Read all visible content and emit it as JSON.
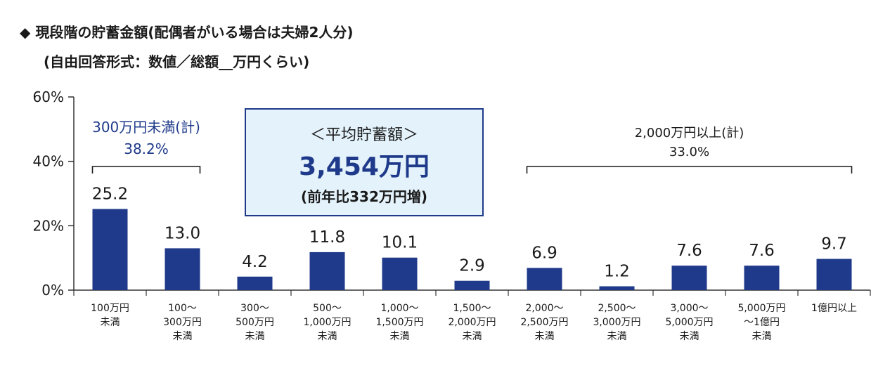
{
  "title": {
    "line1": "◆ 現段階の貯蓄金額(配偶者がいる場合は夫婦2人分)",
    "line2": "(自由回答形式：数値／総額__万円くらい)"
  },
  "callout": {
    "label": "＜平均貯蓄額＞",
    "value": "3,454万円",
    "sub": "(前年比332万円増)"
  },
  "groups": {
    "left_label": "300万円未満(計)",
    "left_value": "38.2%",
    "right_label": "2,000万円以上(計)",
    "right_value": "33.0%"
  },
  "colors": {
    "bar": "#1f3a8a",
    "accent_text": "#1f3a8a",
    "box_fill": "#e3f2fb"
  },
  "chart_data": {
    "type": "bar",
    "categories": [
      [
        "100万円",
        "未満"
      ],
      [
        "100～",
        "300万円",
        "未満"
      ],
      [
        "300～",
        "500万円",
        "未満"
      ],
      [
        "500～",
        "1,000万円",
        "未満"
      ],
      [
        "1,000～",
        "1,500万円",
        "未満"
      ],
      [
        "1,500～",
        "2,000万円",
        "未満"
      ],
      [
        "2,000～",
        "2,500万円",
        "未満"
      ],
      [
        "2,500～",
        "3,000万円",
        "未満"
      ],
      [
        "3,000～",
        "5,000万円",
        "未満"
      ],
      [
        "5,000万円",
        "～1億円",
        "未満"
      ],
      [
        "1億円以上"
      ]
    ],
    "values": [
      25.2,
      13.0,
      4.2,
      11.8,
      10.1,
      2.9,
      6.9,
      1.2,
      7.6,
      7.6,
      9.7
    ],
    "value_labels": [
      "25.2",
      "13.0",
      "4.2",
      "11.8",
      "10.1",
      "2.9",
      "6.9",
      "1.2",
      "7.6",
      "7.6",
      "9.7"
    ],
    "ylim": [
      0,
      60
    ],
    "yticks": [
      "0%",
      "20%",
      "40%",
      "60%"
    ],
    "ytick_values": [
      0,
      20,
      40,
      60
    ],
    "grid": false
  }
}
